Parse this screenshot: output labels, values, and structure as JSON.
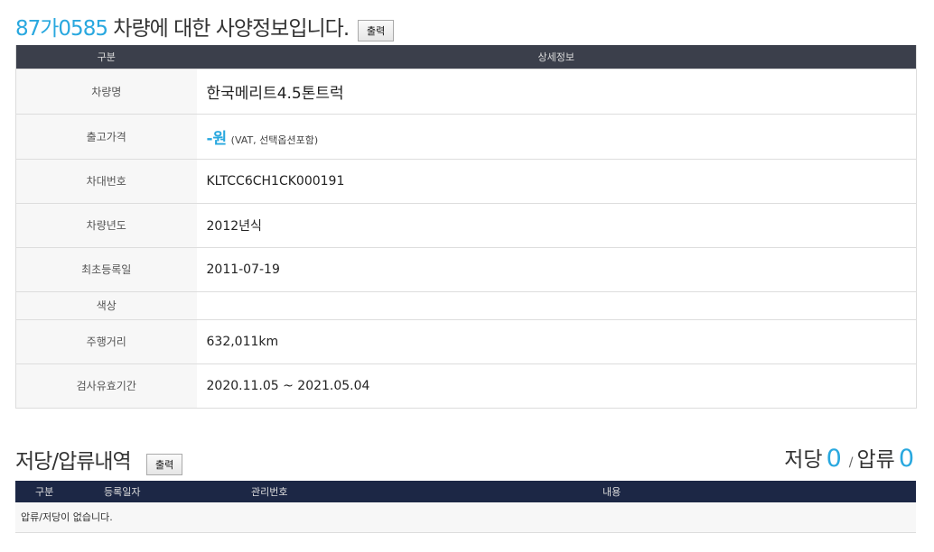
{
  "spec": {
    "plate": "87가0585",
    "title_rest": "차량에 대한 사양정보입니다.",
    "print_label": "출력",
    "headers": [
      "구분",
      "상세정보"
    ],
    "rows": [
      {
        "label": "차량명",
        "value": "한국메리트4.5톤트럭"
      },
      {
        "label": "출고가격",
        "value": "-원",
        "note": "(VAT, 선택옵션포함)"
      },
      {
        "label": "차대번호",
        "value": "KLTCC6CH1CK000191"
      },
      {
        "label": "차량년도",
        "value": "2012년식"
      },
      {
        "label": "최초등록일",
        "value": "2011-07-19"
      },
      {
        "label": "색상",
        "value": ""
      },
      {
        "label": "주행거리",
        "value": "632,011km"
      },
      {
        "label": "검사유효기간",
        "value": "2020.11.05 ~ 2021.05.04"
      }
    ]
  },
  "lien": {
    "title": "저당/압류내역",
    "print_label": "출력",
    "mortgage_label": "저당",
    "mortgage_count": "0",
    "separator": "/",
    "seizure_label": "압류",
    "seizure_count": "0",
    "headers": [
      "구분",
      "등록일자",
      "관리번호",
      "내용"
    ],
    "empty_message": "압류/저당이 없습니다."
  }
}
